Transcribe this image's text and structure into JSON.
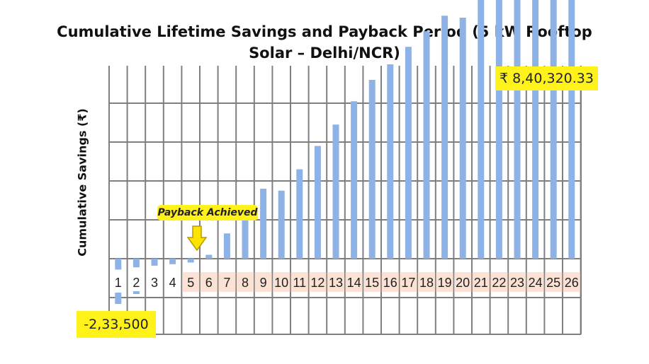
{
  "title_line1": "Cumulative Lifetime Savings and Payback Period (5 kW Rooftop",
  "title_line2": "Solar – Delhi/NCR)",
  "annotations": {
    "max_label": "₹ 8,40,320.33",
    "min_label": "-2,33,500",
    "payback_label": "Payback Achieved"
  },
  "colors": {
    "bar": "#8fb2e6",
    "grid": "#7f7f7f",
    "tick_box": "#fbe2d5",
    "highlight": "#fff21a",
    "arrow": "#ffe300"
  },
  "chart_data": {
    "type": "bar",
    "title": "Cumulative Lifetime Savings and Payback Period (5 kW Rooftop Solar – Delhi/NCR)",
    "ylabel": "Cumulative Savings (₹)",
    "xlabel": "",
    "categories": [
      "1",
      "2",
      "3",
      "4",
      "5",
      "6",
      "7",
      "8",
      "9",
      "10",
      "11",
      "12",
      "13",
      "14",
      "15",
      "16",
      "17",
      "18",
      "19",
      "20",
      "21",
      "22",
      "23",
      "24",
      "25",
      "26"
    ],
    "values": [
      -233500,
      -185000,
      -150000,
      -118000,
      -82000,
      10000,
      65000,
      120000,
      180000,
      175000,
      230000,
      290000,
      345000,
      405000,
      460000,
      500000,
      545000,
      585000,
      625000,
      620000,
      670000,
      710000,
      750000,
      790000,
      830000,
      840320.33
    ],
    "ylim": [
      -400000,
      1000000
    ],
    "grid": true,
    "payback_year": "6"
  }
}
